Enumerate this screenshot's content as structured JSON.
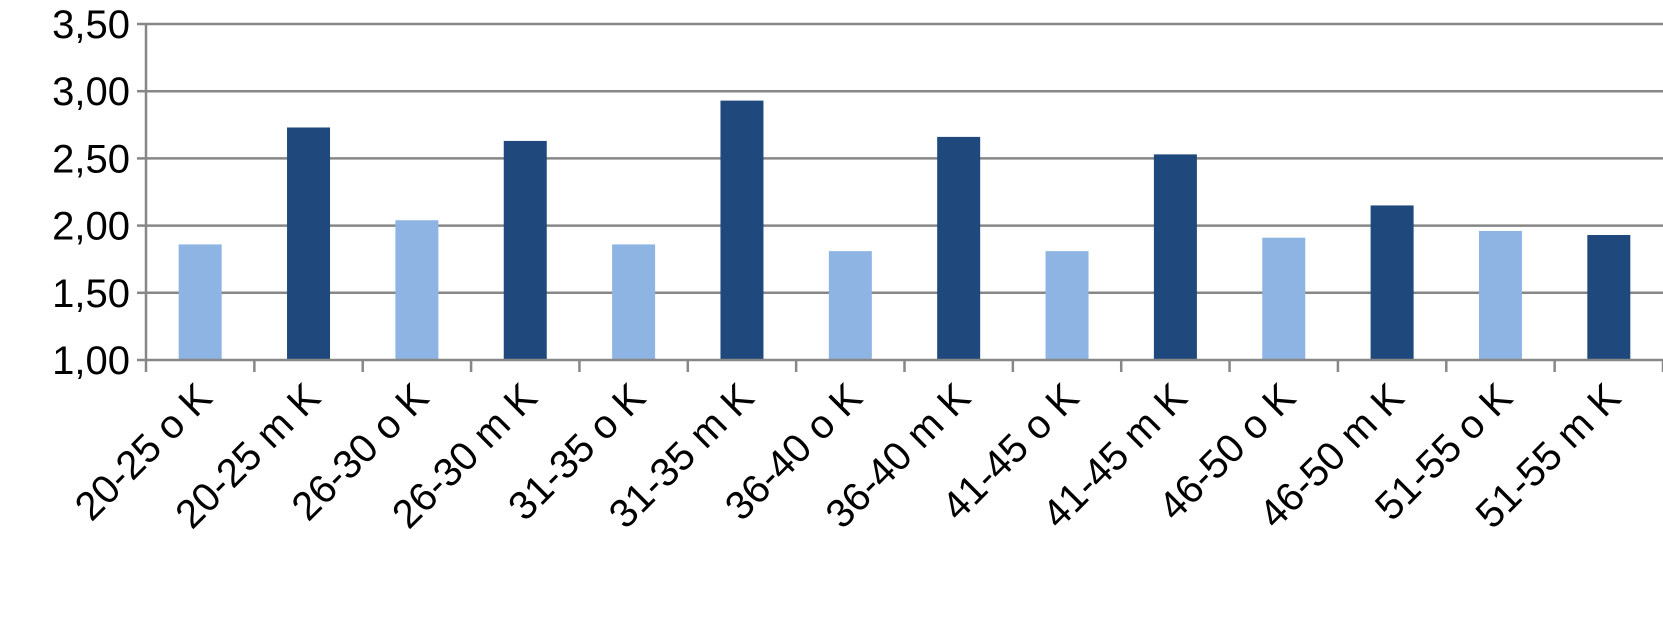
{
  "chart_data": {
    "type": "bar",
    "categories": [
      "20-25 o K",
      "20-25 m K",
      "26-30 o K",
      "26-30 m K",
      "31-35 o K",
      "31-35 m K",
      "36-40 o K",
      "36-40 m K",
      "41-45 o K",
      "41-45 m K",
      "46-50 o K",
      "46-50 m K",
      "51-55 o K",
      "51-55 m K"
    ],
    "values": [
      1.86,
      2.73,
      2.04,
      2.63,
      1.86,
      2.93,
      1.81,
      2.66,
      1.81,
      2.53,
      1.91,
      2.15,
      1.96,
      1.93
    ],
    "bar_colors": [
      "#8EB4E3",
      "#1F497D"
    ],
    "ylim": [
      1.0,
      3.5
    ],
    "yticks": [
      "1,00",
      "1,50",
      "2,00",
      "2,50",
      "3,00",
      "3,50"
    ],
    "ytick_values": [
      1.0,
      1.5,
      2.0,
      2.5,
      3.0,
      3.5
    ],
    "title": "",
    "xlabel": "",
    "ylabel": "",
    "grid": true,
    "legend": "none"
  }
}
